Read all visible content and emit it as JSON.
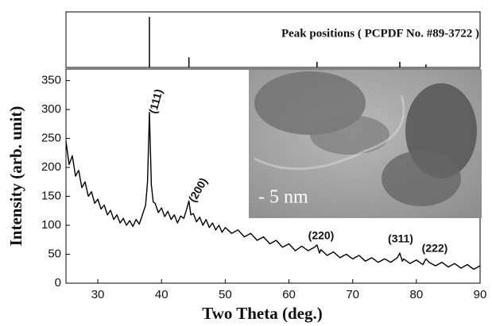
{
  "chart_data": {
    "type": "line",
    "x_label": "Two Theta  (deg.)",
    "y_label": "Intensity (arb. unit)",
    "xlim": [
      25,
      90
    ],
    "xticks": [
      30,
      40,
      50,
      60,
      70,
      80,
      90
    ],
    "ylim": [
      0,
      370
    ],
    "yticks": [
      0,
      50,
      100,
      150,
      200,
      250,
      300,
      350
    ],
    "color": "#000000",
    "x": [
      25,
      25.5,
      26,
      26.5,
      27,
      27.5,
      28,
      28.5,
      29,
      29.5,
      30,
      30.5,
      31,
      31.5,
      32,
      32.5,
      33,
      33.5,
      34,
      34.5,
      35,
      35.5,
      36,
      36.5,
      37,
      37.5,
      37.8,
      38.1,
      38.4,
      38.7,
      39,
      39.5,
      40,
      40.5,
      41,
      41.5,
      42,
      42.5,
      43,
      43.5,
      44,
      44.3,
      44.6,
      45,
      45.5,
      46,
      46.5,
      47,
      47.5,
      48,
      48.5,
      49,
      49.5,
      50,
      51,
      52,
      53,
      54,
      55,
      56,
      57,
      58,
      59,
      60,
      61,
      62,
      63,
      64,
      64.4,
      64.8,
      65,
      66,
      67,
      68,
      69,
      70,
      71,
      72,
      73,
      74,
      75,
      76,
      77,
      77.4,
      77.8,
      78,
      79,
      80,
      81,
      81.5,
      82,
      83,
      84,
      85,
      86,
      87,
      88,
      89,
      90
    ],
    "values": [
      245,
      205,
      220,
      185,
      195,
      165,
      175,
      150,
      158,
      138,
      145,
      128,
      135,
      118,
      126,
      110,
      118,
      104,
      112,
      100,
      108,
      98,
      110,
      102,
      118,
      135,
      175,
      295,
      170,
      140,
      138,
      122,
      130,
      115,
      124,
      110,
      118,
      104,
      116,
      112,
      130,
      142,
      118,
      120,
      106,
      114,
      100,
      110,
      96,
      104,
      92,
      100,
      88,
      96,
      86,
      92,
      80,
      86,
      74,
      80,
      68,
      74,
      62,
      68,
      56,
      64,
      56,
      62,
      66,
      52,
      58,
      48,
      54,
      44,
      50,
      42,
      48,
      38,
      44,
      36,
      42,
      36,
      44,
      52,
      38,
      42,
      34,
      40,
      32,
      42,
      36,
      30,
      36,
      28,
      34,
      26,
      32,
      24,
      30
    ],
    "annotations": [
      "(111)",
      "(200)",
      "(220)",
      "(311)",
      "(222)"
    ],
    "reference_peaks": {
      "title": "Peak positions ( PCPDF No. #89-3722 )",
      "x": [
        38.1,
        44.3,
        64.4,
        77.4,
        81.5
      ],
      "values": [
        100,
        20,
        11,
        11,
        6
      ],
      "ylim": [
        0,
        110
      ]
    },
    "inset_text": "- 5 nm"
  }
}
